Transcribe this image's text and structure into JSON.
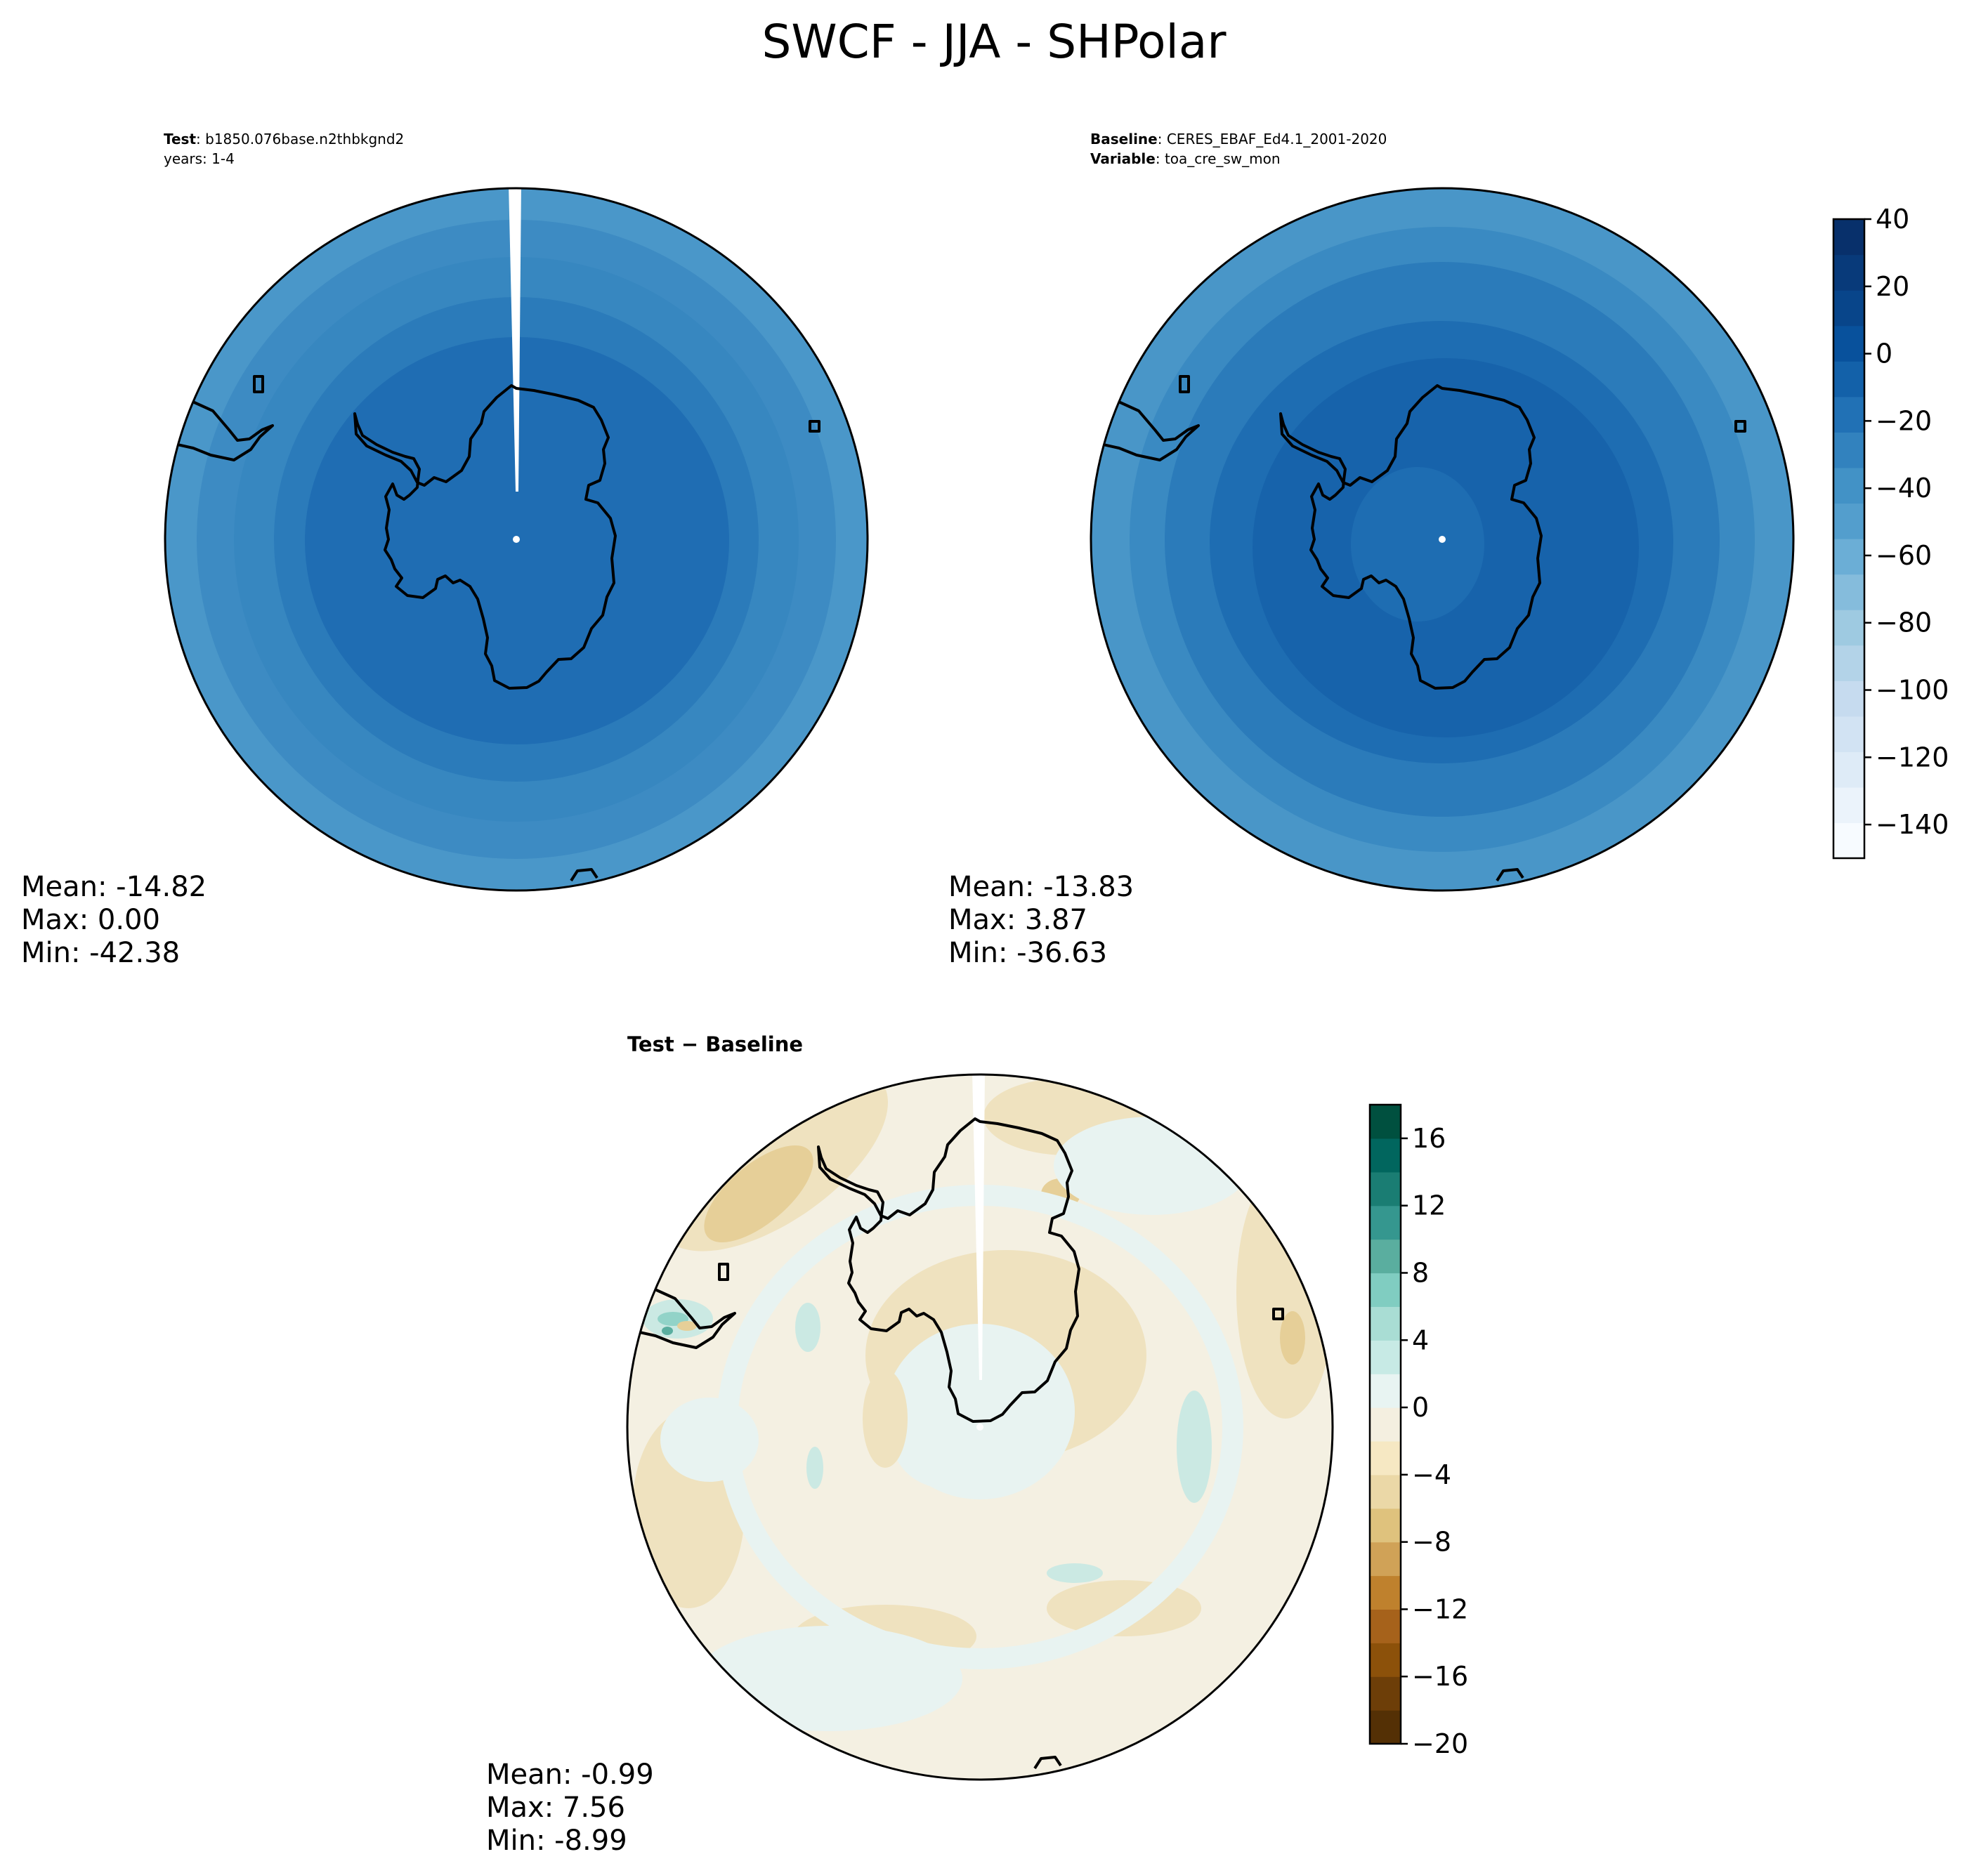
{
  "figure": {
    "title": "SWCF - JJA - SHPolar"
  },
  "panels": [
    {
      "id": "test",
      "header": [
        {
          "bold": "Test",
          "text": "b1850.076base.n2thbkgnd2"
        },
        {
          "bold": "",
          "text": "years: 1-4"
        }
      ],
      "stats": {
        "mean": "Mean: -14.82",
        "max": "Max:  0.00",
        "min": "Min: -42.38"
      }
    },
    {
      "id": "baseline",
      "header": [
        {
          "bold": "Baseline",
          "text": "CERES_EBAF_Ed4.1_2001-2020"
        },
        {
          "bold": "Variable",
          "text": "toa_cre_sw_mon"
        }
      ],
      "stats": {
        "mean": "Mean: -13.83",
        "max": "Max:  3.87",
        "min": "Min: -36.63"
      }
    },
    {
      "id": "diff",
      "header": [
        {
          "bold": "Test − Baseline",
          "text": ""
        }
      ],
      "stats": {
        "mean": "Mean: -0.99",
        "max": "Max:  7.56",
        "min": "Min: -8.99"
      }
    }
  ],
  "colorbars": [
    {
      "id": "main",
      "min": -150,
      "max": 40,
      "tick_values": [
        40,
        20,
        0,
        -20,
        -40,
        -60,
        -80,
        -100,
        -120,
        -140
      ],
      "tick_labels": [
        "40",
        "20",
        "0",
        "−20",
        "−40",
        "−60",
        "−80",
        "−100",
        "−120",
        "−140"
      ],
      "colors": [
        "#f7fbff",
        "#ebf3fb",
        "#deebf7",
        "#d2e3f3",
        "#c6dbef",
        "#b3d3e8",
        "#9ecae1",
        "#85bcdc",
        "#6baed6",
        "#539ecd",
        "#4292c6",
        "#3282be",
        "#2171b5",
        "#1361a9",
        "#08519c",
        "#08458a",
        "#083a7a",
        "#08306b"
      ]
    },
    {
      "id": "diff",
      "min": -20,
      "max": 18,
      "tick_values": [
        16,
        12,
        8,
        4,
        0,
        -4,
        -8,
        -12,
        -16,
        -20
      ],
      "tick_labels": [
        "16",
        "12",
        "8",
        "4",
        "0",
        "−4",
        "−8",
        "−12",
        "−16",
        "−20"
      ],
      "colors": [
        "#543005",
        "#6d3e08",
        "#8c510a",
        "#a6621b",
        "#bf812d",
        "#d0a257",
        "#dfc27d",
        "#ebd8a7",
        "#f6e8c3",
        "#f4efe0",
        "#e8f4f2",
        "#c7eae5",
        "#a9ddd4",
        "#80cdc1",
        "#5aae9f",
        "#35978f",
        "#1a7d73",
        "#01665e",
        "#00503f"
      ]
    }
  ],
  "map_colors": {
    "test": [
      "#1f6db3",
      "#2b7bba",
      "#3787c0",
      "#4a97c9"
    ],
    "baseline": [
      "#1763ab",
      "#1e6db2",
      "#2b7bba",
      "#3a8ac2",
      "#4996c8"
    ],
    "diff": [
      "#f4f0e2",
      "#e8f3f1",
      "#efe2bf",
      "#e6cf98",
      "#cbe9e3",
      "#92d3c8"
    ],
    "coastline": "#000000"
  }
}
